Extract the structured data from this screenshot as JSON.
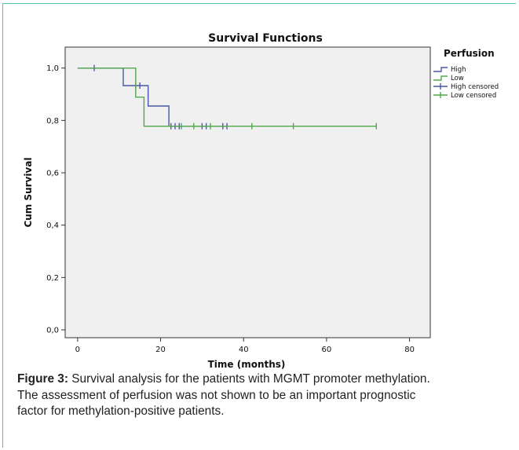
{
  "chart_data": {
    "type": "line",
    "title": "Survival Functions",
    "xlabel": "Time (months)",
    "ylabel": "Cum Survival",
    "xlim": [
      -3,
      85
    ],
    "ylim": [
      -0.03,
      1.08
    ],
    "x_ticks": [
      0,
      20,
      40,
      60,
      80
    ],
    "x_tick_labels": [
      "0",
      "20",
      "40",
      "60",
      "80"
    ],
    "y_ticks": [
      0.0,
      0.2,
      0.4,
      0.6,
      0.8,
      1.0
    ],
    "y_tick_labels": [
      "0,0",
      "0,2",
      "0,4",
      "0,6",
      "0,8",
      "1,0"
    ],
    "grid": false,
    "legend_title": "Perfusion",
    "legend_placement": "right",
    "legend": [
      {
        "label": "High",
        "kind": "step"
      },
      {
        "label": "Low",
        "kind": "step"
      },
      {
        "label": "High censored",
        "kind": "censor"
      },
      {
        "label": "Low censored",
        "kind": "censor"
      }
    ],
    "series": [
      {
        "name": "High",
        "color": "#4a56a6",
        "steps": [
          [
            0,
            1.0
          ],
          [
            11,
            0.933
          ],
          [
            17,
            0.855
          ],
          [
            22,
            0.778
          ],
          [
            36,
            0.778
          ]
        ],
        "censored": [
          [
            4,
            1.0
          ],
          [
            14,
            0.933
          ],
          [
            15,
            0.933
          ],
          [
            22.5,
            0.778
          ],
          [
            23.5,
            0.778
          ],
          [
            24.5,
            0.778
          ],
          [
            30,
            0.778
          ],
          [
            31,
            0.778
          ],
          [
            35,
            0.778
          ],
          [
            36,
            0.778
          ]
        ]
      },
      {
        "name": "Low",
        "color": "#52a84a",
        "steps": [
          [
            0,
            1.0
          ],
          [
            14,
            0.889
          ],
          [
            16,
            0.778
          ],
          [
            72,
            0.778
          ]
        ],
        "censored": [
          [
            25,
            0.778
          ],
          [
            28,
            0.778
          ],
          [
            32,
            0.778
          ],
          [
            42,
            0.778
          ],
          [
            52,
            0.778
          ],
          [
            72,
            0.778
          ]
        ]
      }
    ]
  },
  "caption": {
    "label": "Figure 3:",
    "line1": " Survival analysis for the patients with MGMT promoter methylation.",
    "line2": "The assessment of perfusion was not shown to be an important prognostic",
    "line3": "factor for methylation-positive patients."
  },
  "colors": {
    "plot_background": "#f0f0f0",
    "frame_accent": "#4fc1a8"
  }
}
